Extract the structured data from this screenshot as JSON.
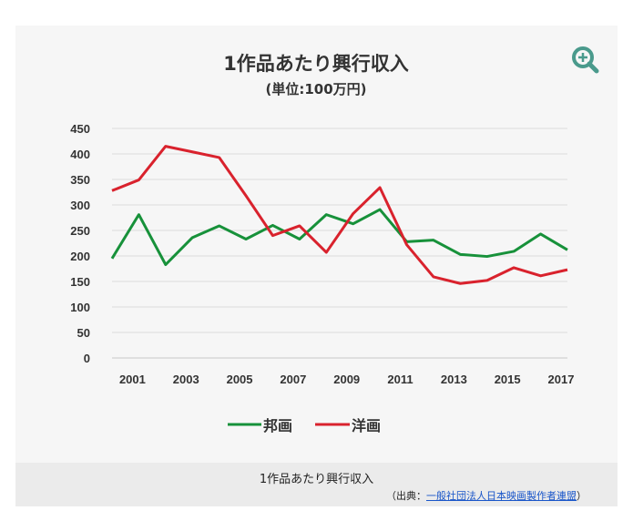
{
  "chart_data": {
    "type": "line",
    "title": "1作品あたり興行収入",
    "subtitle": "(単位:100万円)",
    "x": [
      2000,
      2001,
      2002,
      2003,
      2004,
      2005,
      2006,
      2007,
      2008,
      2009,
      2010,
      2011,
      2012,
      2013,
      2014,
      2015,
      2016,
      2017
    ],
    "x_tick_labels": [
      "2001",
      "2003",
      "2005",
      "2007",
      "2009",
      "2011",
      "2013",
      "2015",
      "2017"
    ],
    "y_tick_labels": [
      "0",
      "50",
      "100",
      "150",
      "200",
      "250",
      "300",
      "350",
      "400",
      "450"
    ],
    "ylim": [
      0,
      450
    ],
    "grid": true,
    "legend_position": "bottom",
    "series": [
      {
        "name": "邦画",
        "color": "#17913a",
        "values": [
          195,
          281,
          183,
          236,
          259,
          233,
          260,
          233,
          281,
          263,
          291,
          228,
          231,
          203,
          199,
          209,
          243,
          212
        ]
      },
      {
        "name": "洋画",
        "color": "#d9222d",
        "values": [
          328,
          349,
          415,
          404,
          393,
          318,
          240,
          259,
          207,
          283,
          334,
          222,
          159,
          146,
          152,
          177,
          161,
          173
        ]
      }
    ]
  },
  "toolbar": {
    "zoom_icon": "zoom-in-icon"
  },
  "caption": {
    "title": "1作品あたり興行収入",
    "source_prefix": "（出典：",
    "source_link": "一般社団法人日本映画製作者連盟",
    "source_suffix": "）"
  }
}
